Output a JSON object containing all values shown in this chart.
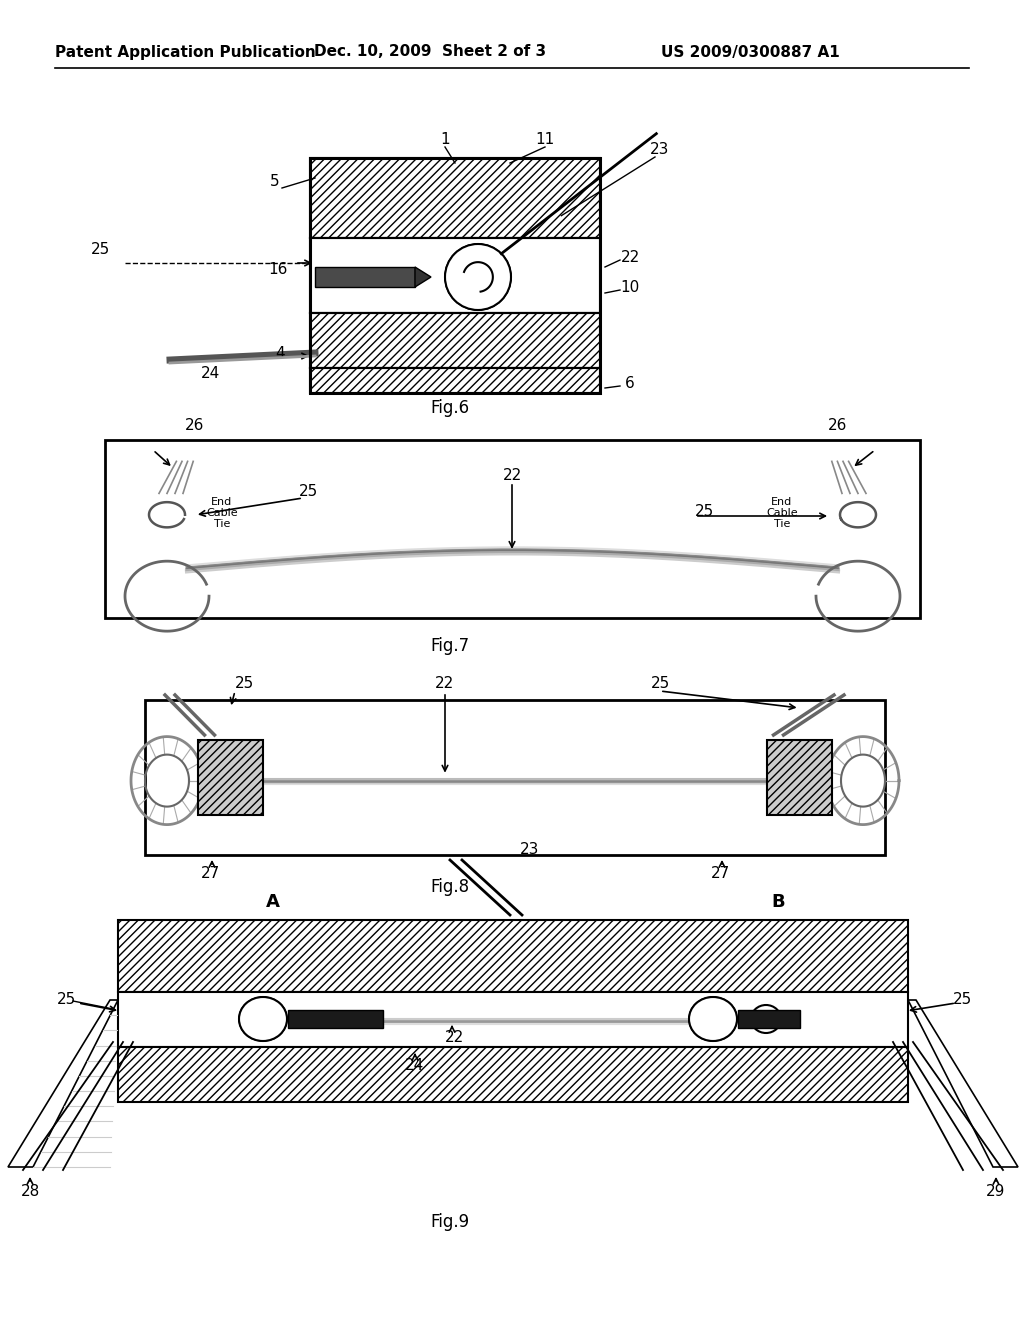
{
  "bg_color": "#ffffff",
  "header_left": "Patent Application Publication",
  "header_center": "Dec. 10, 2009  Sheet 2 of 3",
  "header_right": "US 2009/0300887 A1",
  "fig6_label": "Fig.6",
  "fig7_label": "Fig.7",
  "fig8_label": "Fig.8",
  "fig9_label": "Fig.9"
}
